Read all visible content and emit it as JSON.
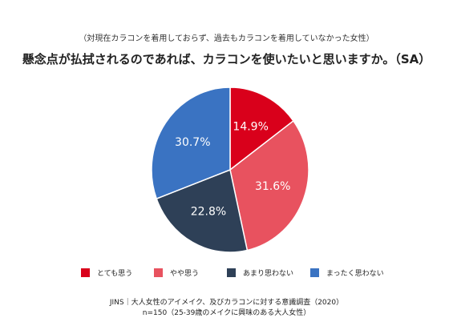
{
  "chart_data": {
    "type": "pie",
    "subtitle": "（対現在カラコンを着用しておらず、過去もカラコンを着用していなかった女性）",
    "title": "懸念点が払拭されるのであれば、カラコンを使いたいと思いますか。（SA）",
    "categories": [
      "とても思う",
      "やや思う",
      "あまり思わない",
      "まったく思わない"
    ],
    "values": [
      14.9,
      31.6,
      22.8,
      30.7
    ],
    "value_labels": [
      "14.9%",
      "31.6%",
      "22.8%",
      "30.7%"
    ],
    "colors": [
      "#d9001b",
      "#e8525f",
      "#2e4057",
      "#3a73c2"
    ],
    "legend_placement": "bottom",
    "start_angle": "12 o'clock, clockwise"
  },
  "footer": {
    "source": "JINS｜大人女性のアイメイク、及びカラコンに対する意識調査（2020）",
    "sample": "n=150（25-39歳のメイクに興味のある大人女性）"
  }
}
